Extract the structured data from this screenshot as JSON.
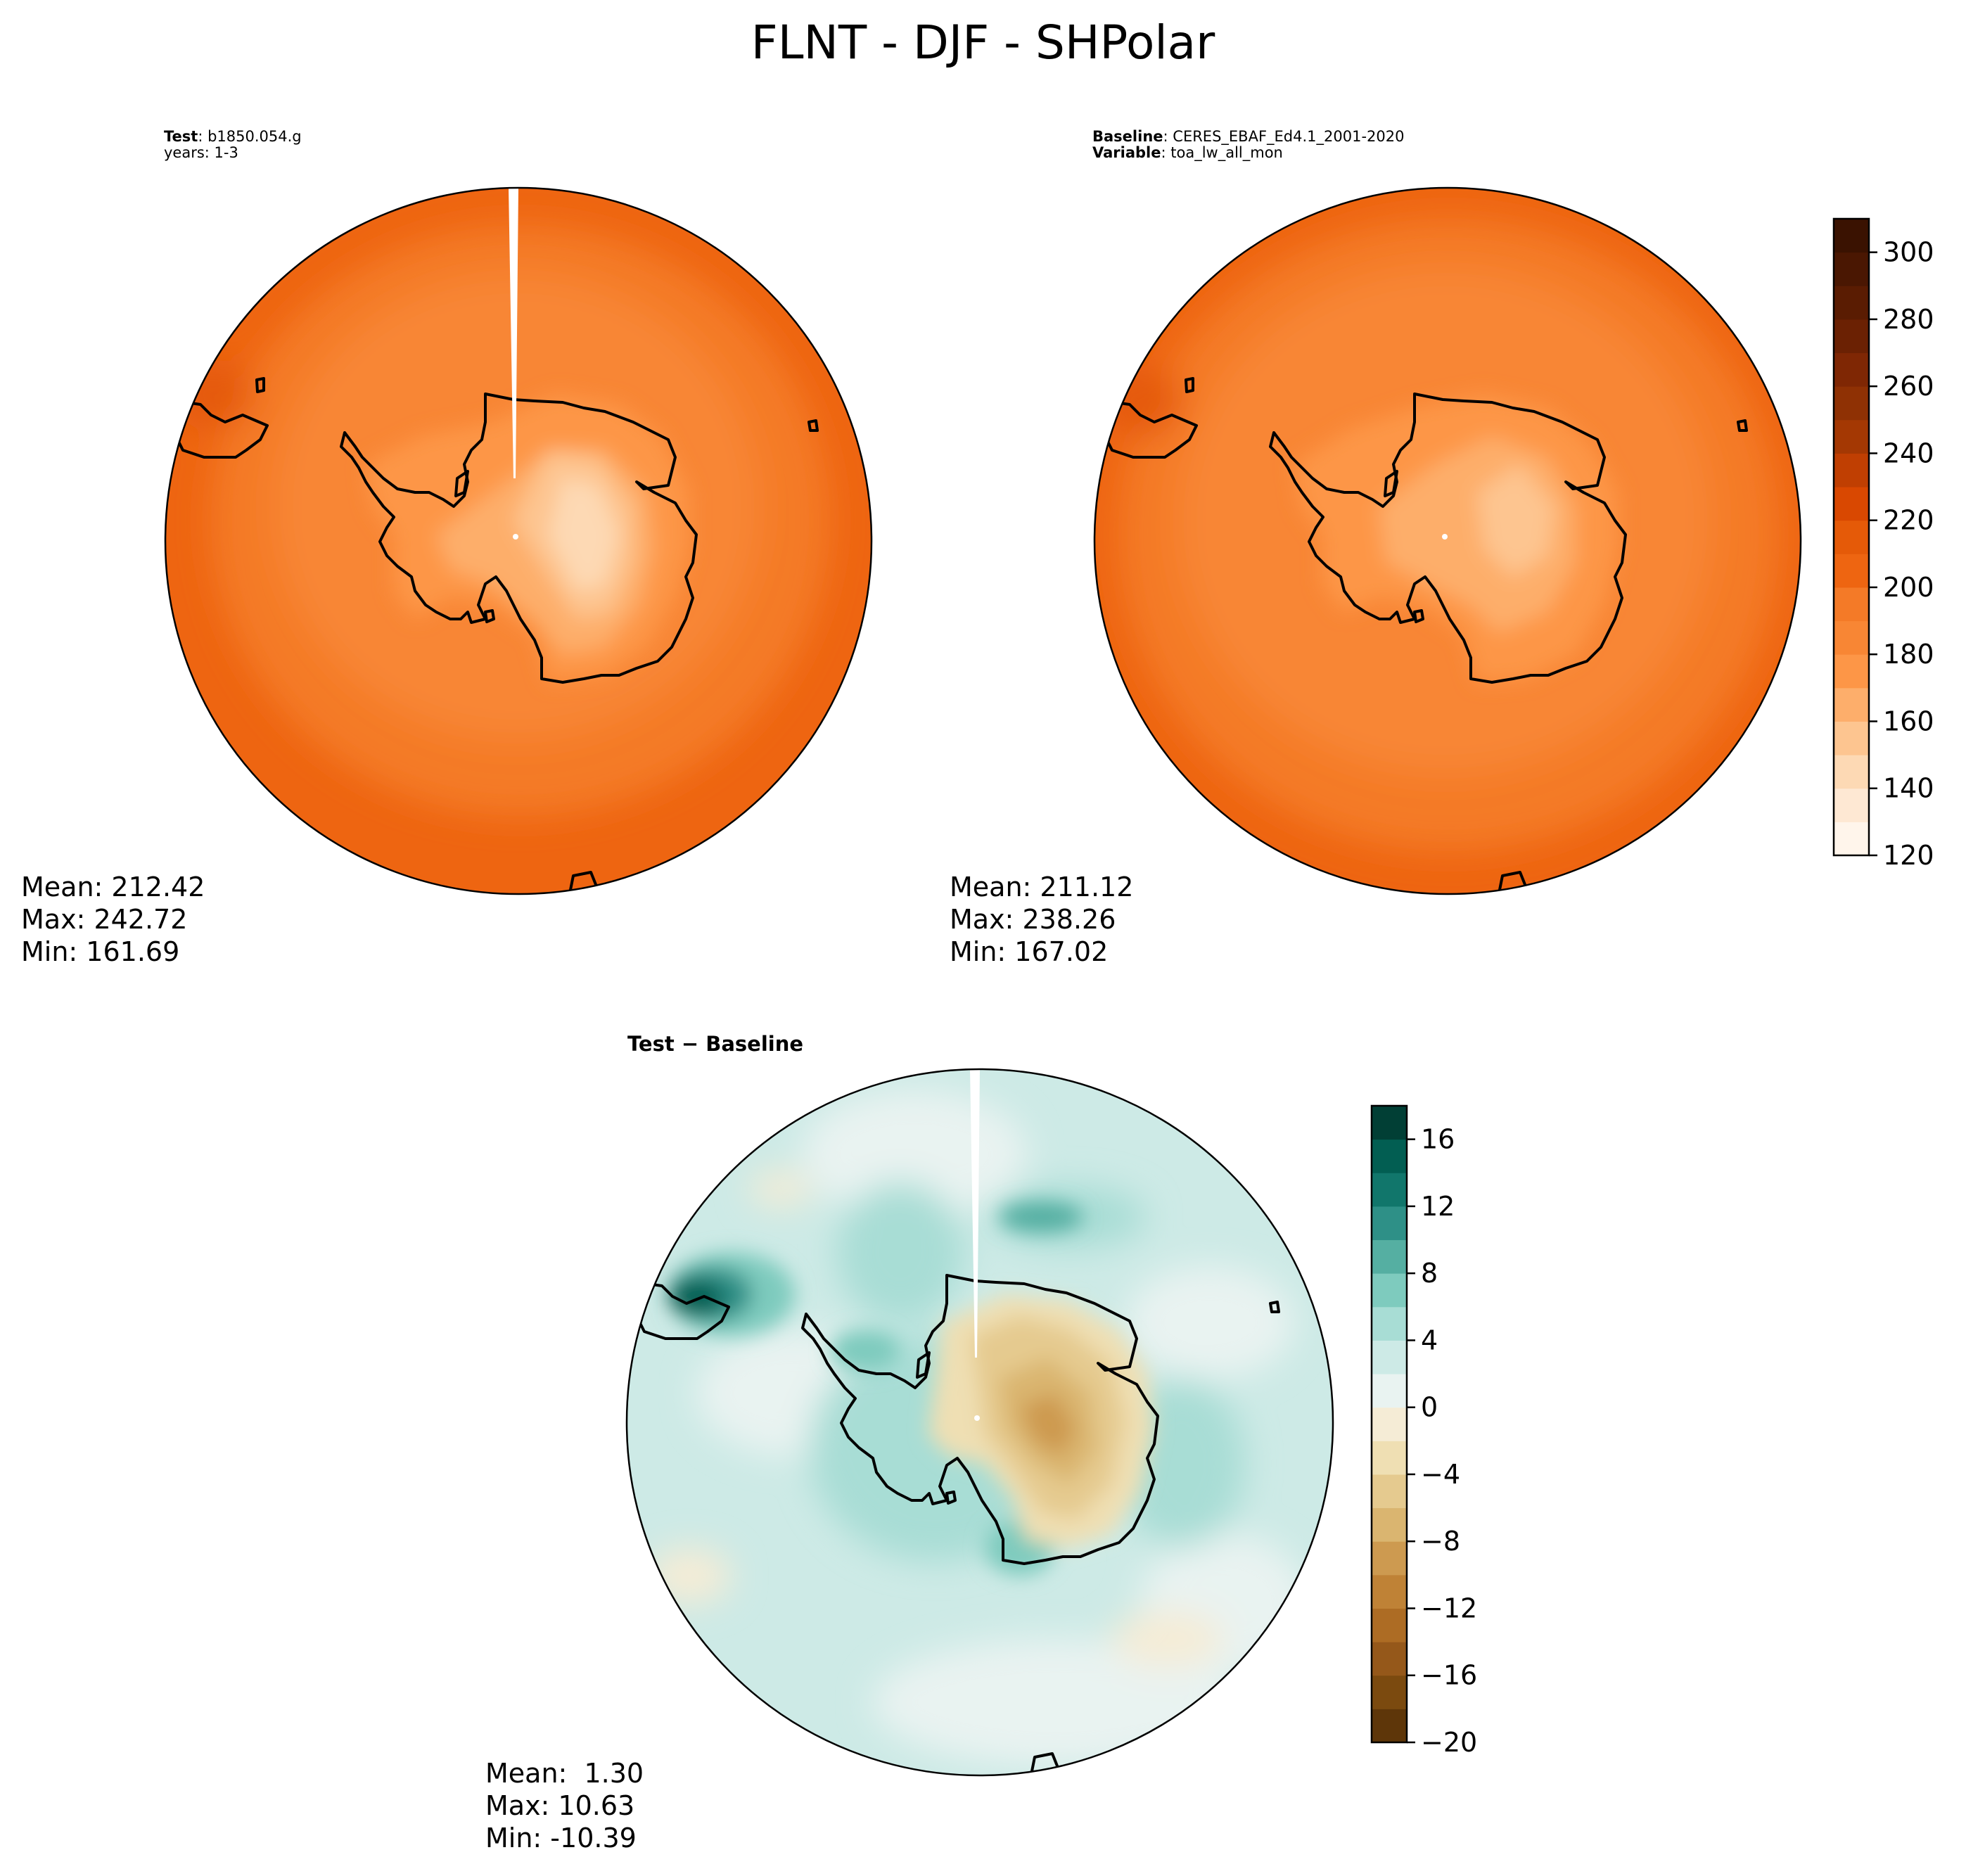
{
  "figure": {
    "title": "FLNT - DJF - SHPolar"
  },
  "panels": {
    "test": {
      "label_bold": "Test",
      "label_value": "b1850.054.g",
      "line2": "years: 1-3",
      "stats": {
        "mean": "Mean: 212.42",
        "max": "Max: 242.72",
        "min": "Min: 161.69"
      },
      "mean": 212.42,
      "max": 242.72,
      "min": 161.69
    },
    "baseline": {
      "label_bold": "Baseline",
      "label_value": "CERES_EBAF_Ed4.1_2001-2020",
      "var_bold": "Variable",
      "var_value": "toa_lw_all_mon",
      "stats": {
        "mean": "Mean: 211.12",
        "max": "Max: 238.26",
        "min": "Min: 167.02"
      },
      "mean": 211.12,
      "max": 238.26,
      "min": 167.02
    },
    "diff": {
      "header": "Test − Baseline",
      "stats": {
        "mean": "Mean:  1.30",
        "max": "Max: 10.63",
        "min": "Min: -10.39"
      },
      "mean": 1.3,
      "max": 10.63,
      "min": -10.39
    }
  },
  "chart_data": [
    {
      "type": "heatmap",
      "projection": "south-polar-stereographic",
      "title": "Test",
      "colormap": "Oranges",
      "colorbar": {
        "range": [
          120,
          310
        ],
        "ticks": [
          120,
          140,
          160,
          180,
          200,
          220,
          240,
          260,
          280,
          300
        ],
        "tick_labels": [
          "120",
          "140",
          "160",
          "180",
          "200",
          "220",
          "240",
          "260",
          "280",
          "300"
        ],
        "levels": [
          120,
          130,
          140,
          150,
          160,
          170,
          180,
          190,
          200,
          210,
          220,
          230,
          240,
          250,
          260,
          270,
          280,
          290,
          300,
          310
        ],
        "colors": [
          "#fff5eb",
          "#fee8d3",
          "#fdd9b4",
          "#fdc590",
          "#fdae6b",
          "#fd9647",
          "#f88634",
          "#f47a27",
          "#ee6511",
          "#e55a08",
          "#d94801",
          "#c03f02",
          "#a43803",
          "#8f3104",
          "#7f2704",
          "#6b2103",
          "#5a1c02",
          "#4a1702",
          "#3a1201"
        ]
      },
      "stats": {
        "mean": 212.42,
        "max": 242.72,
        "min": 161.69
      }
    },
    {
      "type": "heatmap",
      "projection": "south-polar-stereographic",
      "title": "Baseline",
      "colormap": "Oranges",
      "shared_colorbar_with": "Test",
      "stats": {
        "mean": 211.12,
        "max": 238.26,
        "min": 167.02
      }
    },
    {
      "type": "heatmap",
      "projection": "south-polar-stereographic",
      "title": "Test − Baseline",
      "colormap": "BrBG",
      "colorbar": {
        "range": [
          -20,
          18
        ],
        "ticks": [
          -20,
          -16,
          -12,
          -8,
          -4,
          0,
          4,
          8,
          12,
          16
        ],
        "tick_labels": [
          "−20",
          "−16",
          "−12",
          "−8",
          "−4",
          "0",
          "4",
          "8",
          "12",
          "16"
        ],
        "colors": [
          "#5e3609",
          "#7b4a0f",
          "#95581a",
          "#ad6c24",
          "#bf8236",
          "#cd9a50",
          "#dab570",
          "#e5ca8f",
          "#efdfb3",
          "#f5ecd6",
          "#e9f3f1",
          "#cdeae6",
          "#a8ddd5",
          "#7ecbbe",
          "#55afa2",
          "#2e9087",
          "#11766b",
          "#025e52",
          "#013f35"
        ]
      },
      "stats": {
        "mean": 1.3,
        "max": 10.63,
        "min": -10.39
      }
    }
  ]
}
